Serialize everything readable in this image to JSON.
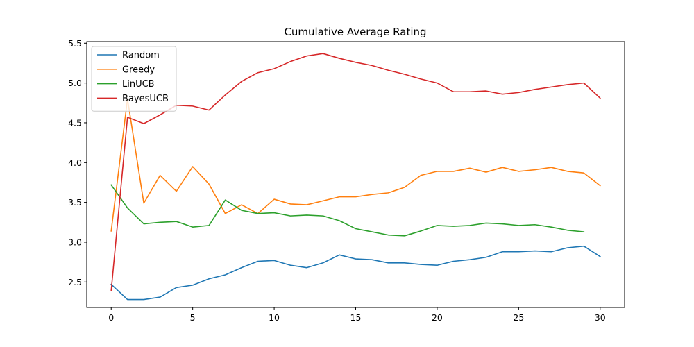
{
  "chart_data": {
    "type": "line",
    "title": "Cumulative Average Rating",
    "xlabel": "",
    "ylabel": "",
    "xlim": [
      -1.5,
      31.5
    ],
    "ylim": [
      2.18,
      5.52
    ],
    "xticks": [
      0,
      5,
      10,
      15,
      20,
      25,
      30
    ],
    "yticks": [
      2.5,
      3.0,
      3.5,
      4.0,
      4.5,
      5.0,
      5.5
    ],
    "xtick_labels": [
      "0",
      "5",
      "10",
      "15",
      "20",
      "25",
      "30"
    ],
    "ytick_labels": [
      "2.5",
      "3.0",
      "3.5",
      "4.0",
      "4.5",
      "5.0",
      "5.5"
    ],
    "grid": false,
    "legend_position": "top-left",
    "series": [
      {
        "name": "Random",
        "color": "#1f77b4",
        "x": [
          0,
          1,
          2,
          3,
          4,
          5,
          6,
          7,
          8,
          9,
          10,
          11,
          12,
          13,
          14,
          15,
          16,
          17,
          18,
          19,
          20,
          21,
          22,
          23,
          24,
          25,
          26,
          27,
          28,
          29,
          30
        ],
        "values": [
          2.47,
          2.28,
          2.28,
          2.31,
          2.43,
          2.46,
          2.54,
          2.59,
          2.68,
          2.76,
          2.77,
          2.71,
          2.68,
          2.74,
          2.84,
          2.79,
          2.78,
          2.74,
          2.74,
          2.72,
          2.71,
          2.76,
          2.78,
          2.81,
          2.88,
          2.88,
          2.89,
          2.88,
          2.93,
          2.95,
          2.82
        ]
      },
      {
        "name": "Greedy",
        "color": "#ff7f0e",
        "x": [
          0,
          1,
          2,
          3,
          4,
          5,
          6,
          7,
          8,
          9,
          10,
          11,
          12,
          13,
          14,
          15,
          16,
          17,
          18,
          19,
          20,
          21,
          22,
          23,
          24,
          25,
          26,
          27,
          28,
          29,
          30
        ],
        "values": [
          3.14,
          4.8,
          3.49,
          3.84,
          3.64,
          3.95,
          3.73,
          3.36,
          3.47,
          3.36,
          3.54,
          3.48,
          3.47,
          3.52,
          3.57,
          3.57,
          3.6,
          3.62,
          3.69,
          3.84,
          3.89,
          3.89,
          3.93,
          3.88,
          3.94,
          3.89,
          3.91,
          3.94,
          3.89,
          3.87,
          3.71
        ]
      },
      {
        "name": "LinUCB",
        "color": "#2ca02c",
        "x": [
          0,
          1,
          2,
          3,
          4,
          5,
          6,
          7,
          8,
          9,
          10,
          11,
          12,
          13,
          14,
          15,
          16,
          17,
          18,
          19,
          20,
          21,
          22,
          23,
          24,
          25,
          26,
          27,
          28,
          29
        ],
        "values": [
          3.72,
          3.43,
          3.23,
          3.25,
          3.26,
          3.19,
          3.21,
          3.53,
          3.4,
          3.36,
          3.37,
          3.33,
          3.34,
          3.33,
          3.27,
          3.17,
          3.13,
          3.09,
          3.08,
          3.14,
          3.21,
          3.2,
          3.21,
          3.24,
          3.23,
          3.21,
          3.22,
          3.19,
          3.15,
          3.13
        ]
      },
      {
        "name": "BayesUCB",
        "color": "#d62728",
        "x": [
          0,
          1,
          2,
          3,
          4,
          5,
          6,
          7,
          8,
          9,
          10,
          11,
          12,
          13,
          14,
          15,
          16,
          17,
          18,
          19,
          20,
          21,
          22,
          23,
          24,
          25,
          26,
          27,
          28,
          29,
          30
        ],
        "values": [
          2.39,
          4.57,
          4.49,
          4.6,
          4.72,
          4.71,
          4.66,
          4.85,
          5.02,
          5.13,
          5.18,
          5.27,
          5.34,
          5.37,
          5.31,
          5.26,
          5.22,
          5.16,
          5.11,
          5.05,
          5.0,
          4.89,
          4.89,
          4.9,
          4.86,
          4.88,
          4.92,
          4.95,
          4.98,
          5.0,
          4.81
        ]
      }
    ]
  }
}
